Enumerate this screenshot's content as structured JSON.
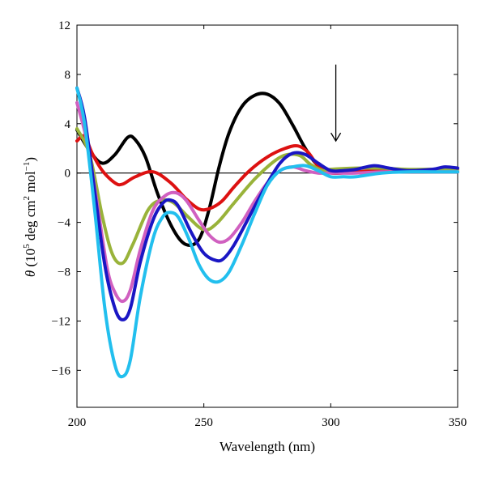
{
  "chart_data": {
    "type": "line",
    "xlabel": "Wavelength (nm)",
    "ylabel": {
      "symbol": "θ",
      "text_open": " (10",
      "sup1": "5",
      "text_mid": " deg cm",
      "sup2": "2",
      "text_mid2": " mol",
      "sup3": "−1",
      "text_close": ")"
    },
    "xlim": [
      200,
      350
    ],
    "ylim": [
      -19,
      12
    ],
    "xticks": [
      200,
      250,
      300,
      350
    ],
    "yticks": [
      12,
      8,
      4,
      0,
      -4,
      -8,
      -12,
      -16
    ],
    "ytick_labels": [
      "12",
      "8",
      "4",
      "0",
      "−4",
      "−8",
      "−12",
      "−16"
    ],
    "zero_line": true,
    "annotation": {
      "type": "arrow-down",
      "x": 302,
      "y_from": 8.8,
      "y_to": 2.6
    },
    "series": [
      {
        "color": "#000000",
        "x": [
          200,
          205,
          210,
          215,
          220,
          223,
          227,
          232,
          238,
          243,
          248,
          252,
          256,
          260,
          265,
          270,
          275,
          280,
          285,
          290,
          295,
          300,
          310,
          320,
          330,
          340,
          350
        ],
        "y": [
          3.5,
          1.8,
          0.8,
          1.5,
          2.9,
          2.7,
          1.3,
          -1.8,
          -4.6,
          -5.8,
          -5.4,
          -3.0,
          0.5,
          3.3,
          5.4,
          6.3,
          6.4,
          5.6,
          3.9,
          2.0,
          0.6,
          0.2,
          0.1,
          0.1,
          0.1,
          0.1,
          0.1
        ]
      },
      {
        "color": "#dd1111",
        "x": [
          200,
          203,
          206,
          210,
          215,
          218,
          223,
          230,
          237,
          243,
          248,
          252,
          257,
          262,
          268,
          275,
          282,
          287,
          291,
          295,
          300,
          310,
          320,
          330,
          340,
          350
        ],
        "y": [
          2.6,
          3.0,
          1.6,
          0.2,
          -0.8,
          -0.9,
          -0.3,
          0.1,
          -0.8,
          -2.1,
          -2.9,
          -2.9,
          -2.3,
          -1.1,
          0.2,
          1.3,
          2.0,
          2.2,
          1.7,
          0.6,
          0.0,
          0.1,
          0.2,
          0.2,
          0.3,
          0.3
        ]
      },
      {
        "color": "#99b33a",
        "x": [
          200,
          205,
          210,
          214,
          218,
          222,
          228,
          233,
          238,
          244,
          250,
          255,
          262,
          270,
          278,
          283,
          288,
          292,
          297,
          300,
          310,
          320,
          330,
          340,
          350
        ],
        "y": [
          3.6,
          1.5,
          -3.5,
          -6.6,
          -7.3,
          -5.8,
          -3.0,
          -2.2,
          -2.4,
          -3.6,
          -4.6,
          -4.1,
          -2.4,
          -0.5,
          1.0,
          1.5,
          1.4,
          0.7,
          0.2,
          0.3,
          0.4,
          0.4,
          0.3,
          0.3,
          0.3
        ]
      },
      {
        "color": "#d060c0",
        "x": [
          200,
          204,
          208,
          212,
          215,
          218,
          221,
          225,
          230,
          235,
          239,
          243,
          248,
          252,
          256,
          260,
          265,
          270,
          275,
          280,
          285,
          290,
          295,
          300,
          310,
          320,
          330,
          340,
          350
        ],
        "y": [
          5.7,
          2.5,
          -2.5,
          -7.8,
          -9.7,
          -10.4,
          -9.5,
          -6.2,
          -3.0,
          -1.8,
          -1.6,
          -2.2,
          -3.8,
          -5.0,
          -5.6,
          -5.3,
          -4.0,
          -2.3,
          -0.8,
          0.2,
          0.5,
          0.2,
          0.0,
          0.0,
          0.0,
          0.1,
          0.1,
          0.1,
          0.1
        ]
      },
      {
        "color": "#1a16c4",
        "x": [
          200,
          203,
          207,
          211,
          215,
          218,
          221,
          225,
          230,
          234,
          237,
          240,
          245,
          250,
          255,
          258,
          262,
          268,
          274,
          280,
          285,
          290,
          295,
          300,
          305,
          310,
          317,
          323,
          330,
          340,
          345,
          350
        ],
        "y": [
          6.9,
          4.5,
          -1.5,
          -7.5,
          -11.0,
          -11.9,
          -11.0,
          -7.2,
          -3.8,
          -2.4,
          -2.2,
          -2.7,
          -4.8,
          -6.5,
          -7.1,
          -6.9,
          -5.8,
          -3.5,
          -1.2,
          0.8,
          1.6,
          1.5,
          0.8,
          0.2,
          0.2,
          0.3,
          0.6,
          0.4,
          0.2,
          0.3,
          0.5,
          0.4
        ]
      },
      {
        "color": "#22bfee",
        "x": [
          200,
          203,
          207,
          211,
          215,
          218,
          221,
          225,
          230,
          234,
          237,
          240,
          244,
          248,
          252,
          256,
          260,
          265,
          270,
          275,
          280,
          285,
          290,
          295,
          300,
          305,
          310,
          320,
          330,
          340,
          350
        ],
        "y": [
          6.9,
          4.0,
          -3.0,
          -11.0,
          -15.6,
          -16.5,
          -15.2,
          -10.0,
          -5.3,
          -3.5,
          -3.2,
          -3.6,
          -5.3,
          -7.4,
          -8.6,
          -8.8,
          -8.0,
          -5.8,
          -3.3,
          -1.0,
          0.2,
          0.5,
          0.6,
          0.2,
          -0.3,
          -0.3,
          -0.3,
          0.0,
          0.1,
          0.1,
          0.1
        ]
      }
    ]
  }
}
